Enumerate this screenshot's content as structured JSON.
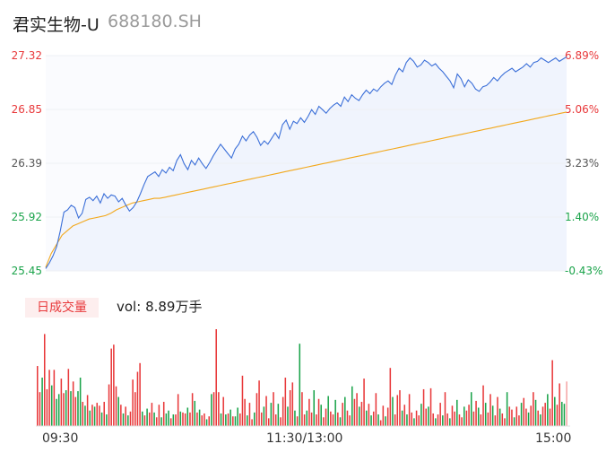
{
  "header": {
    "name": "君实生物-U",
    "code": "688180.SH"
  },
  "volume_panel": {
    "badge": "日成交量",
    "vol_prefix": "vol:",
    "vol_value": "8.89万手"
  },
  "time_axis": [
    "09:30",
    "11:30/13:00",
    "15:00"
  ],
  "colors": {
    "price_line": "#3b6fd8",
    "avg_line": "#f2a81c",
    "up": "#e8383a",
    "down": "#1aa34a",
    "axis_text_gray": "#555555"
  },
  "chart_data": [
    {
      "type": "line",
      "y_ticks_left": [
        "27.32",
        "26.85",
        "26.39",
        "25.92",
        "25.45"
      ],
      "y_ticks_right": [
        "6.89%",
        "5.06%",
        "3.23%",
        "1.40%",
        "-0.43%"
      ],
      "ylim": [
        25.45,
        27.32
      ],
      "series": [
        {
          "values": [
            25.47,
            25.52,
            25.58,
            25.66,
            25.8,
            25.96,
            25.98,
            26.02,
            26.0,
            25.91,
            25.95,
            26.07,
            26.09,
            26.06,
            26.1,
            26.04,
            26.12,
            26.08,
            26.11,
            26.1,
            26.05,
            26.08,
            26.02,
            25.97,
            26.0,
            26.05,
            26.12,
            26.2,
            26.27,
            26.29,
            26.31,
            26.27,
            26.33,
            26.3,
            26.35,
            26.32,
            26.41,
            26.46,
            26.38,
            26.33,
            26.41,
            26.37,
            26.43,
            26.38,
            26.34,
            26.39,
            26.45,
            26.5,
            26.55,
            26.51,
            26.47,
            26.43,
            26.51,
            26.55,
            26.62,
            26.58,
            26.63,
            26.66,
            26.61,
            26.54,
            26.58,
            26.55,
            26.6,
            26.65,
            26.6,
            26.72,
            26.76,
            26.68,
            26.75,
            26.73,
            26.78,
            26.74,
            26.79,
            26.85,
            26.81,
            26.88,
            26.85,
            26.82,
            26.86,
            26.89,
            26.91,
            26.88,
            26.96,
            26.92,
            26.98,
            26.95,
            26.93,
            26.98,
            27.02,
            26.99,
            27.03,
            27.01,
            27.05,
            27.08,
            27.1,
            27.07,
            27.15,
            27.21,
            27.18,
            27.26,
            27.3,
            27.27,
            27.22,
            27.24,
            27.28,
            27.26,
            27.23,
            27.25,
            27.21,
            27.18,
            27.14,
            27.1,
            27.04,
            27.16,
            27.12,
            27.05,
            27.11,
            27.08,
            27.03,
            27.01,
            27.05,
            27.06,
            27.09,
            27.13,
            27.1,
            27.14,
            27.17,
            27.19,
            27.21,
            27.18,
            27.2,
            27.22,
            27.25,
            27.22,
            27.26,
            27.27,
            27.3,
            27.28,
            27.26,
            27.28,
            27.3,
            27.27,
            27.29,
            27.31
          ]
        },
        {
          "values": [
            25.48,
            25.6,
            25.68,
            25.76,
            25.8,
            25.84,
            25.86,
            25.88,
            25.9,
            25.91,
            25.92,
            25.93,
            25.95,
            25.98,
            26.0,
            26.02,
            26.04,
            26.05,
            26.06,
            26.07,
            26.08,
            26.08,
            26.09,
            26.1,
            26.11,
            26.12,
            26.13,
            26.14,
            26.15,
            26.16,
            26.17,
            26.18,
            26.19,
            26.2,
            26.21,
            26.22,
            26.23,
            26.24,
            26.25,
            26.26,
            26.27,
            26.28,
            26.29,
            26.3,
            26.31,
            26.32,
            26.33,
            26.34,
            26.35,
            26.36,
            26.37,
            26.38,
            26.39,
            26.4,
            26.41,
            26.42,
            26.43,
            26.44,
            26.45,
            26.46,
            26.47,
            26.48,
            26.49,
            26.5,
            26.51,
            26.52,
            26.53,
            26.54,
            26.55,
            26.56,
            26.57,
            26.58,
            26.59,
            26.6,
            26.61,
            26.62,
            26.63,
            26.64,
            26.65,
            26.66,
            26.67,
            26.68,
            26.69,
            26.7,
            26.71,
            26.72,
            26.73,
            26.74,
            26.75,
            26.76,
            26.77,
            26.78,
            26.79,
            26.8,
            26.81,
            26.82,
            26.83
          ]
        }
      ]
    },
    {
      "type": "bar",
      "bars": [
        {
          "v": 0.62,
          "d": "up"
        },
        {
          "v": 0.35,
          "d": "up"
        },
        {
          "v": 0.5,
          "d": "down"
        },
        {
          "v": 0.95,
          "d": "up"
        },
        {
          "v": 0.38,
          "d": "up"
        },
        {
          "v": 0.58,
          "d": "up"
        },
        {
          "v": 0.42,
          "d": "down"
        },
        {
          "v": 0.58,
          "d": "up"
        },
        {
          "v": 0.28,
          "d": "down"
        },
        {
          "v": 0.33,
          "d": "down"
        },
        {
          "v": 0.49,
          "d": "up"
        },
        {
          "v": 0.34,
          "d": "up"
        },
        {
          "v": 0.37,
          "d": "down"
        },
        {
          "v": 0.59,
          "d": "up"
        },
        {
          "v": 0.36,
          "d": "down"
        },
        {
          "v": 0.46,
          "d": "up"
        },
        {
          "v": 0.3,
          "d": "up"
        },
        {
          "v": 0.36,
          "d": "down"
        },
        {
          "v": 0.5,
          "d": "down"
        },
        {
          "v": 0.25,
          "d": "up"
        },
        {
          "v": 0.21,
          "d": "down"
        },
        {
          "v": 0.32,
          "d": "up"
        },
        {
          "v": 0.16,
          "d": "down"
        },
        {
          "v": 0.22,
          "d": "up"
        },
        {
          "v": 0.2,
          "d": "down"
        },
        {
          "v": 0.24,
          "d": "up"
        },
        {
          "v": 0.21,
          "d": "up"
        },
        {
          "v": 0.14,
          "d": "down"
        },
        {
          "v": 0.25,
          "d": "up"
        },
        {
          "v": 0.12,
          "d": "down"
        },
        {
          "v": 0.43,
          "d": "up"
        },
        {
          "v": 0.8,
          "d": "up"
        },
        {
          "v": 0.84,
          "d": "up"
        },
        {
          "v": 0.41,
          "d": "up"
        },
        {
          "v": 0.3,
          "d": "down"
        },
        {
          "v": 0.22,
          "d": "up"
        },
        {
          "v": 0.13,
          "d": "down"
        },
        {
          "v": 0.2,
          "d": "up"
        },
        {
          "v": 0.11,
          "d": "down"
        },
        {
          "v": 0.15,
          "d": "up"
        },
        {
          "v": 0.48,
          "d": "up"
        },
        {
          "v": 0.35,
          "d": "up"
        },
        {
          "v": 0.56,
          "d": "up"
        },
        {
          "v": 0.65,
          "d": "up"
        },
        {
          "v": 0.15,
          "d": "down"
        },
        {
          "v": 0.11,
          "d": "up"
        },
        {
          "v": 0.18,
          "d": "down"
        },
        {
          "v": 0.14,
          "d": "up"
        },
        {
          "v": 0.24,
          "d": "up"
        },
        {
          "v": 0.14,
          "d": "down"
        },
        {
          "v": 0.09,
          "d": "up"
        },
        {
          "v": 0.22,
          "d": "up"
        },
        {
          "v": 0.09,
          "d": "down"
        },
        {
          "v": 0.25,
          "d": "up"
        },
        {
          "v": 0.13,
          "d": "down"
        },
        {
          "v": 0.16,
          "d": "down"
        },
        {
          "v": 0.08,
          "d": "up"
        },
        {
          "v": 0.12,
          "d": "down"
        },
        {
          "v": 0.12,
          "d": "up"
        },
        {
          "v": 0.33,
          "d": "up"
        },
        {
          "v": 0.15,
          "d": "down"
        },
        {
          "v": 0.14,
          "d": "up"
        },
        {
          "v": 0.13,
          "d": "up"
        },
        {
          "v": 0.19,
          "d": "down"
        },
        {
          "v": 0.14,
          "d": "up"
        },
        {
          "v": 0.34,
          "d": "up"
        },
        {
          "v": 0.26,
          "d": "down"
        },
        {
          "v": 0.14,
          "d": "up"
        },
        {
          "v": 0.17,
          "d": "down"
        },
        {
          "v": 0.11,
          "d": "up"
        },
        {
          "v": 0.13,
          "d": "up"
        },
        {
          "v": 0.07,
          "d": "down"
        },
        {
          "v": 0.1,
          "d": "up"
        },
        {
          "v": 0.33,
          "d": "down"
        },
        {
          "v": 0.35,
          "d": "up"
        },
        {
          "v": 1.0,
          "d": "up"
        },
        {
          "v": 0.35,
          "d": "up"
        },
        {
          "v": 0.13,
          "d": "down"
        },
        {
          "v": 0.3,
          "d": "up"
        },
        {
          "v": 0.12,
          "d": "down"
        },
        {
          "v": 0.13,
          "d": "up"
        },
        {
          "v": 0.17,
          "d": "down"
        },
        {
          "v": 0.1,
          "d": "up"
        },
        {
          "v": 0.1,
          "d": "down"
        },
        {
          "v": 0.19,
          "d": "down"
        },
        {
          "v": 0.13,
          "d": "up"
        },
        {
          "v": 0.52,
          "d": "up"
        },
        {
          "v": 0.28,
          "d": "up"
        },
        {
          "v": 0.11,
          "d": "down"
        },
        {
          "v": 0.24,
          "d": "up"
        },
        {
          "v": 0.07,
          "d": "up"
        },
        {
          "v": 0.14,
          "d": "down"
        },
        {
          "v": 0.34,
          "d": "up"
        },
        {
          "v": 0.47,
          "d": "up"
        },
        {
          "v": 0.14,
          "d": "up"
        },
        {
          "v": 0.2,
          "d": "down"
        },
        {
          "v": 0.31,
          "d": "up"
        },
        {
          "v": 0.08,
          "d": "up"
        },
        {
          "v": 0.24,
          "d": "down"
        },
        {
          "v": 0.35,
          "d": "up"
        },
        {
          "v": 0.12,
          "d": "up"
        },
        {
          "v": 0.23,
          "d": "down"
        },
        {
          "v": 0.09,
          "d": "up"
        },
        {
          "v": 0.3,
          "d": "up"
        },
        {
          "v": 0.5,
          "d": "up"
        },
        {
          "v": 0.2,
          "d": "down"
        },
        {
          "v": 0.37,
          "d": "up"
        },
        {
          "v": 0.45,
          "d": "up"
        },
        {
          "v": 0.16,
          "d": "down"
        },
        {
          "v": 0.1,
          "d": "up"
        },
        {
          "v": 0.85,
          "d": "down"
        },
        {
          "v": 0.35,
          "d": "up"
        },
        {
          "v": 0.12,
          "d": "up"
        },
        {
          "v": 0.16,
          "d": "down"
        },
        {
          "v": 0.28,
          "d": "up"
        },
        {
          "v": 0.14,
          "d": "up"
        },
        {
          "v": 0.37,
          "d": "down"
        },
        {
          "v": 0.12,
          "d": "up"
        },
        {
          "v": 0.28,
          "d": "up"
        },
        {
          "v": 0.22,
          "d": "down"
        },
        {
          "v": 0.09,
          "d": "up"
        },
        {
          "v": 0.18,
          "d": "up"
        },
        {
          "v": 0.31,
          "d": "down"
        },
        {
          "v": 0.15,
          "d": "up"
        },
        {
          "v": 0.12,
          "d": "up"
        },
        {
          "v": 0.27,
          "d": "down"
        },
        {
          "v": 0.14,
          "d": "up"
        },
        {
          "v": 0.09,
          "d": "down"
        },
        {
          "v": 0.24,
          "d": "up"
        },
        {
          "v": 0.3,
          "d": "down"
        },
        {
          "v": 0.16,
          "d": "up"
        },
        {
          "v": 0.11,
          "d": "up"
        },
        {
          "v": 0.41,
          "d": "down"
        },
        {
          "v": 0.28,
          "d": "up"
        },
        {
          "v": 0.34,
          "d": "up"
        },
        {
          "v": 0.2,
          "d": "down"
        },
        {
          "v": 0.25,
          "d": "up"
        },
        {
          "v": 0.49,
          "d": "up"
        },
        {
          "v": 0.16,
          "d": "down"
        },
        {
          "v": 0.23,
          "d": "up"
        },
        {
          "v": 0.11,
          "d": "down"
        },
        {
          "v": 0.15,
          "d": "up"
        },
        {
          "v": 0.34,
          "d": "up"
        },
        {
          "v": 0.12,
          "d": "down"
        },
        {
          "v": 0.06,
          "d": "up"
        },
        {
          "v": 0.21,
          "d": "up"
        },
        {
          "v": 0.1,
          "d": "down"
        },
        {
          "v": 0.19,
          "d": "up"
        },
        {
          "v": 0.6,
          "d": "up"
        },
        {
          "v": 0.3,
          "d": "down"
        },
        {
          "v": 0.12,
          "d": "up"
        },
        {
          "v": 0.32,
          "d": "up"
        },
        {
          "v": 0.37,
          "d": "up"
        },
        {
          "v": 0.16,
          "d": "down"
        },
        {
          "v": 0.22,
          "d": "up"
        },
        {
          "v": 0.12,
          "d": "down"
        },
        {
          "v": 0.33,
          "d": "up"
        },
        {
          "v": 0.14,
          "d": "up"
        },
        {
          "v": 0.08,
          "d": "down"
        },
        {
          "v": 0.16,
          "d": "up"
        },
        {
          "v": 0.11,
          "d": "up"
        },
        {
          "v": 0.23,
          "d": "down"
        },
        {
          "v": 0.38,
          "d": "up"
        },
        {
          "v": 0.18,
          "d": "up"
        },
        {
          "v": 0.2,
          "d": "down"
        },
        {
          "v": 0.39,
          "d": "up"
        },
        {
          "v": 0.13,
          "d": "up"
        },
        {
          "v": 0.08,
          "d": "down"
        },
        {
          "v": 0.12,
          "d": "up"
        },
        {
          "v": 0.24,
          "d": "up"
        },
        {
          "v": 0.11,
          "d": "down"
        },
        {
          "v": 0.35,
          "d": "up"
        },
        {
          "v": 0.13,
          "d": "up"
        },
        {
          "v": 0.08,
          "d": "down"
        },
        {
          "v": 0.21,
          "d": "up"
        },
        {
          "v": 0.15,
          "d": "up"
        },
        {
          "v": 0.27,
          "d": "down"
        },
        {
          "v": 0.12,
          "d": "up"
        },
        {
          "v": 0.09,
          "d": "up"
        },
        {
          "v": 0.2,
          "d": "down"
        },
        {
          "v": 0.16,
          "d": "up"
        },
        {
          "v": 0.22,
          "d": "up"
        },
        {
          "v": 0.35,
          "d": "down"
        },
        {
          "v": 0.15,
          "d": "up"
        },
        {
          "v": 0.26,
          "d": "up"
        },
        {
          "v": 0.19,
          "d": "down"
        },
        {
          "v": 0.12,
          "d": "up"
        },
        {
          "v": 0.42,
          "d": "up"
        },
        {
          "v": 0.24,
          "d": "down"
        },
        {
          "v": 0.14,
          "d": "up"
        },
        {
          "v": 0.33,
          "d": "up"
        },
        {
          "v": 0.21,
          "d": "down"
        },
        {
          "v": 0.11,
          "d": "up"
        },
        {
          "v": 0.3,
          "d": "up"
        },
        {
          "v": 0.18,
          "d": "down"
        },
        {
          "v": 0.13,
          "d": "up"
        },
        {
          "v": 0.08,
          "d": "up"
        },
        {
          "v": 0.35,
          "d": "down"
        },
        {
          "v": 0.2,
          "d": "up"
        },
        {
          "v": 0.17,
          "d": "up"
        },
        {
          "v": 0.09,
          "d": "down"
        },
        {
          "v": 0.2,
          "d": "up"
        },
        {
          "v": 0.11,
          "d": "up"
        },
        {
          "v": 0.24,
          "d": "down"
        },
        {
          "v": 0.29,
          "d": "up"
        },
        {
          "v": 0.18,
          "d": "up"
        },
        {
          "v": 0.14,
          "d": "down"
        },
        {
          "v": 0.21,
          "d": "up"
        },
        {
          "v": 0.35,
          "d": "up"
        },
        {
          "v": 0.27,
          "d": "down"
        },
        {
          "v": 0.16,
          "d": "up"
        },
        {
          "v": 0.12,
          "d": "down"
        },
        {
          "v": 0.2,
          "d": "up"
        },
        {
          "v": 0.24,
          "d": "up"
        },
        {
          "v": 0.33,
          "d": "down"
        },
        {
          "v": 0.18,
          "d": "up"
        },
        {
          "v": 0.68,
          "d": "up"
        },
        {
          "v": 0.3,
          "d": "down"
        },
        {
          "v": 0.22,
          "d": "up"
        },
        {
          "v": 0.44,
          "d": "up"
        },
        {
          "v": 0.25,
          "d": "down"
        },
        {
          "v": 0.23,
          "d": "down"
        },
        {
          "v": 0.46,
          "d": "up"
        }
      ]
    }
  ]
}
